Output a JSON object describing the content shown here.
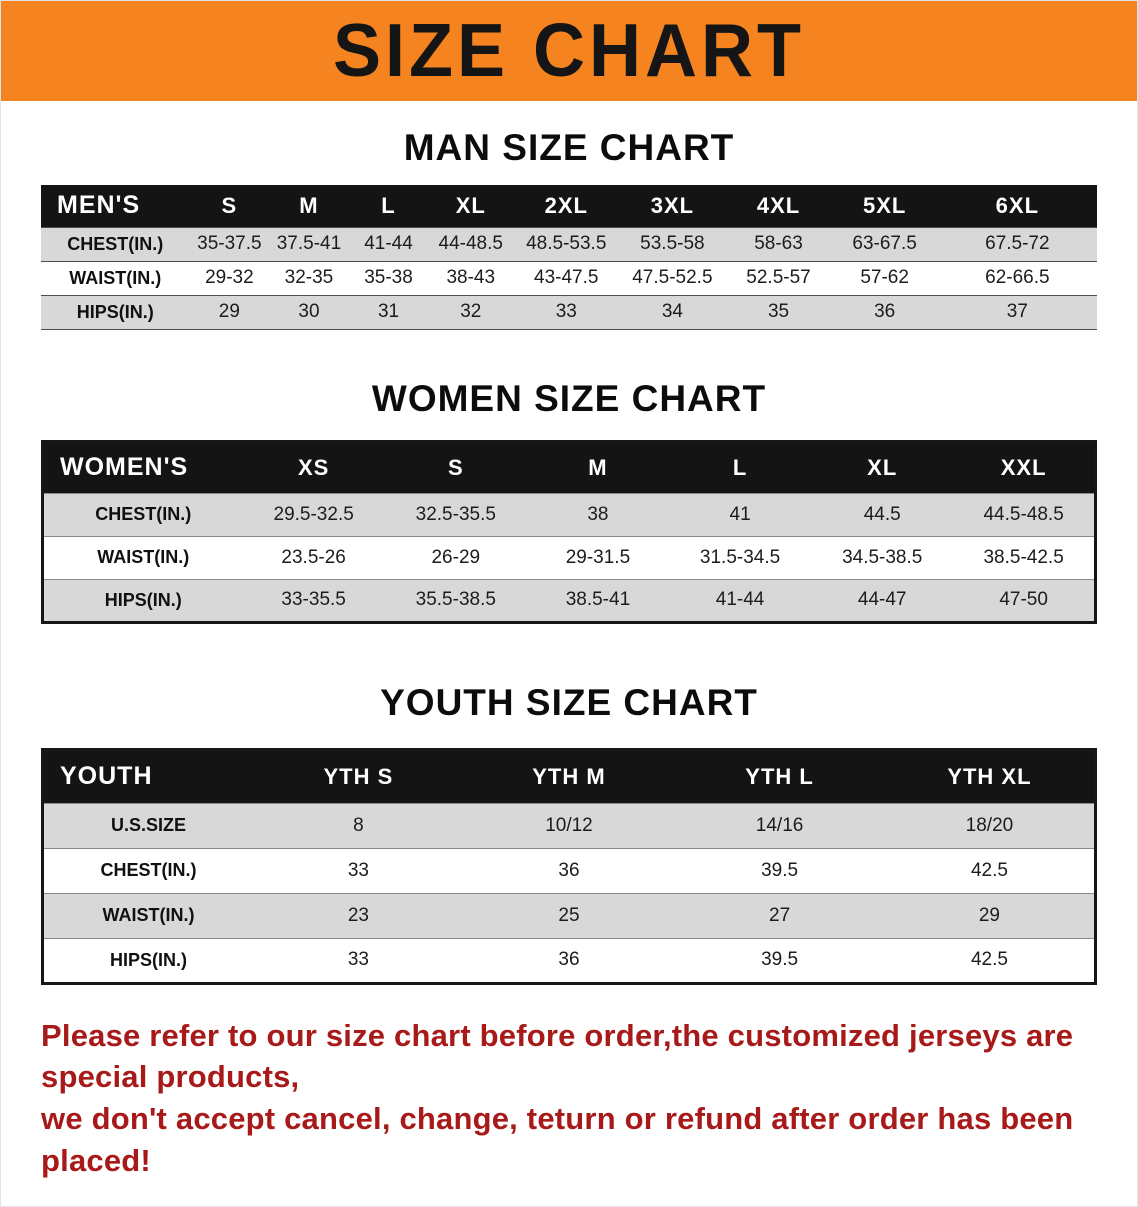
{
  "banner": {
    "title": "SIZE CHART"
  },
  "men": {
    "heading": "MAN SIZE CHART",
    "corner": "MEN'S",
    "sizes": [
      "S",
      "M",
      "L",
      "XL",
      "2XL",
      "3XL",
      "4XL",
      "5XL",
      "6XL"
    ],
    "rows": [
      {
        "label": "CHEST(IN.)",
        "values": [
          "35-37.5",
          "37.5-41",
          "41-44",
          "44-48.5",
          "48.5-53.5",
          "53.5-58",
          "58-63",
          "63-67.5",
          "67.5-72"
        ]
      },
      {
        "label": "WAIST(IN.)",
        "values": [
          "29-32",
          "32-35",
          "35-38",
          "38-43",
          "43-47.5",
          "47.5-52.5",
          "52.5-57",
          "57-62",
          "62-66.5"
        ]
      },
      {
        "label": "HIPS(IN.)",
        "values": [
          "29",
          "30",
          "31",
          "32",
          "33",
          "34",
          "35",
          "36",
          "37"
        ]
      }
    ]
  },
  "women": {
    "heading": "WOMEN SIZE CHART",
    "corner": "WOMEN'S",
    "sizes": [
      "XS",
      "S",
      "M",
      "L",
      "XL",
      "XXL"
    ],
    "rows": [
      {
        "label": "CHEST(IN.)",
        "values": [
          "29.5-32.5",
          "32.5-35.5",
          "38",
          "41",
          "44.5",
          "44.5-48.5"
        ]
      },
      {
        "label": "WAIST(IN.)",
        "values": [
          "23.5-26",
          "26-29",
          "29-31.5",
          "31.5-34.5",
          "34.5-38.5",
          "38.5-42.5"
        ]
      },
      {
        "label": "HIPS(IN.)",
        "values": [
          "33-35.5",
          "35.5-38.5",
          "38.5-41",
          "41-44",
          "44-47",
          "47-50"
        ]
      }
    ]
  },
  "youth": {
    "heading": "YOUTH SIZE CHART",
    "corner": "YOUTH",
    "sizes": [
      "YTH S",
      "YTH M",
      "YTH L",
      "YTH XL"
    ],
    "rows": [
      {
        "label": "U.S.SIZE",
        "values": [
          "8",
          "10/12",
          "14/16",
          "18/20"
        ]
      },
      {
        "label": "CHEST(IN.)",
        "values": [
          "33",
          "36",
          "39.5",
          "42.5"
        ]
      },
      {
        "label": "WAIST(IN.)",
        "values": [
          "23",
          "25",
          "27",
          "29"
        ]
      },
      {
        "label": "HIPS(IN.)",
        "values": [
          "33",
          "36",
          "39.5",
          "42.5"
        ]
      }
    ]
  },
  "footer": {
    "line1": "Please refer to our size chart before order,the customized jerseys are special products,",
    "line2": "we don't accept cancel, change, teturn or refund after order has been placed!"
  },
  "colors": {
    "banner_bg": "#F5831F",
    "header_bg": "#141414",
    "row_alt": "#D8D8D8",
    "footer_text": "#A81A1A"
  }
}
